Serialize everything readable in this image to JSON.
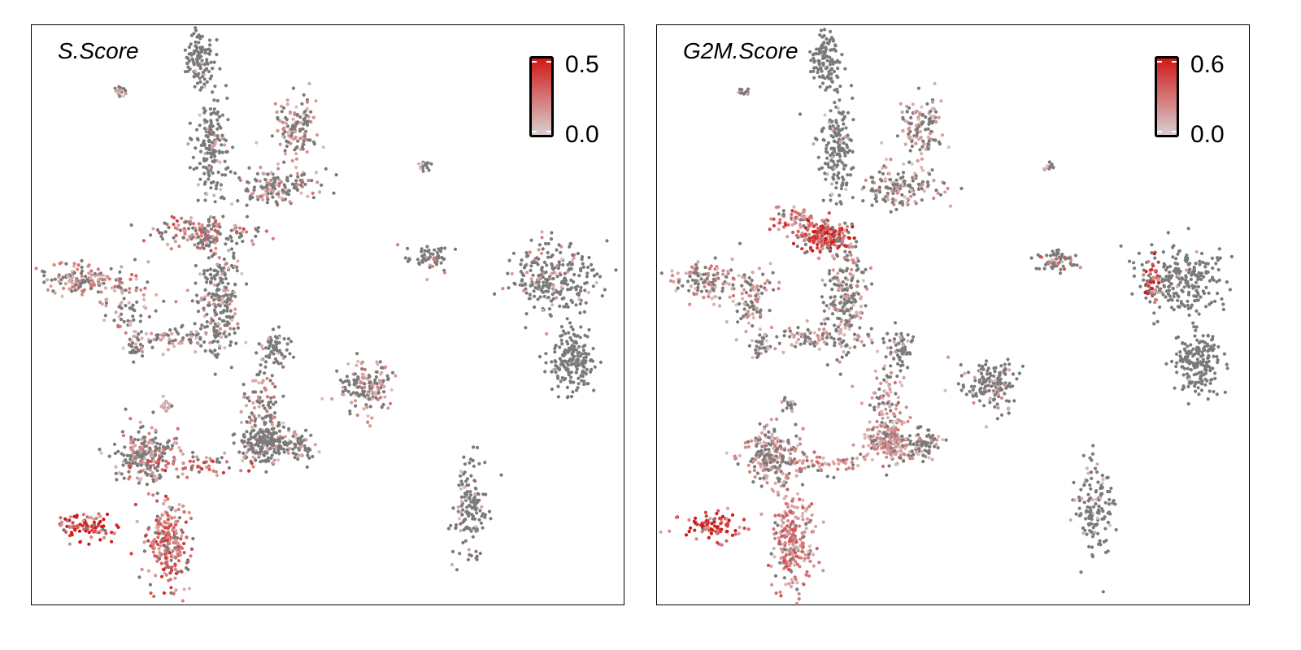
{
  "chart_data": [
    {
      "type": "scatter",
      "title": "S.Score",
      "xlabel": "",
      "ylabel": "",
      "color_scale": {
        "low_color": "#d8d0d0",
        "high_color": "#d01818",
        "min": 0.0,
        "max": 0.5,
        "min_label": "0.0",
        "max_label": "0.5"
      },
      "zero_color": "#7a7a7a",
      "legend_position": "top-right",
      "grid": false,
      "xlim": [
        0,
        100
      ],
      "ylim": [
        0,
        100
      ],
      "clusters": [
        {
          "x": 28.5,
          "y": 94.5,
          "sx": 1.2,
          "sy": 2.8,
          "n": 110,
          "frac": 0.05,
          "mean": 0.08
        },
        {
          "x": 30.5,
          "y": 79.0,
          "sx": 1.5,
          "sy": 4.0,
          "n": 170,
          "frac": 0.15,
          "mean": 0.1
        },
        {
          "x": 44.5,
          "y": 81.5,
          "sx": 1.8,
          "sy": 3.0,
          "n": 130,
          "frac": 0.55,
          "mean": 0.12
        },
        {
          "x": 41.0,
          "y": 72.0,
          "sx": 3.5,
          "sy": 1.6,
          "n": 150,
          "frac": 0.3,
          "mean": 0.14
        },
        {
          "x": 30.0,
          "y": 64.0,
          "sx": 4.5,
          "sy": 1.3,
          "n": 160,
          "frac": 0.55,
          "mean": 0.22
        },
        {
          "x": 32.0,
          "y": 53.0,
          "sx": 1.8,
          "sy": 4.8,
          "n": 220,
          "frac": 0.25,
          "mean": 0.12
        },
        {
          "x": 8.0,
          "y": 56.0,
          "sx": 2.8,
          "sy": 1.4,
          "n": 120,
          "frac": 0.6,
          "mean": 0.15
        },
        {
          "x": 16.0,
          "y": 52.5,
          "sx": 2.2,
          "sy": 2.6,
          "n": 90,
          "frac": 0.55,
          "mean": 0.16
        },
        {
          "x": 25.0,
          "y": 46.0,
          "sx": 4.5,
          "sy": 1.0,
          "n": 90,
          "frac": 0.4,
          "mean": 0.12
        },
        {
          "x": 41.0,
          "y": 44.0,
          "sx": 1.3,
          "sy": 1.6,
          "n": 60,
          "frac": 0.1,
          "mean": 0.08
        },
        {
          "x": 17.5,
          "y": 44.0,
          "sx": 0.7,
          "sy": 0.8,
          "n": 25,
          "frac": 0.3,
          "mean": 0.1
        },
        {
          "x": 39.0,
          "y": 34.0,
          "sx": 1.5,
          "sy": 3.5,
          "n": 90,
          "frac": 0.5,
          "mean": 0.15
        },
        {
          "x": 39.5,
          "y": 28.0,
          "sx": 2.0,
          "sy": 1.8,
          "n": 200,
          "frac": 0.25,
          "mean": 0.1
        },
        {
          "x": 45.0,
          "y": 27.5,
          "sx": 1.4,
          "sy": 1.5,
          "n": 70,
          "frac": 0.3,
          "mean": 0.1
        },
        {
          "x": 19.5,
          "y": 25.5,
          "sx": 2.5,
          "sy": 2.5,
          "n": 220,
          "frac": 0.4,
          "mean": 0.15
        },
        {
          "x": 28.0,
          "y": 24.0,
          "sx": 4.5,
          "sy": 1.0,
          "n": 60,
          "frac": 0.75,
          "mean": 0.25
        },
        {
          "x": 23.0,
          "y": 10.5,
          "sx": 1.8,
          "sy": 4.0,
          "n": 240,
          "frac": 0.8,
          "mean": 0.25
        },
        {
          "x": 9.0,
          "y": 13.5,
          "sx": 2.5,
          "sy": 1.2,
          "n": 90,
          "frac": 0.95,
          "mean": 0.4
        },
        {
          "x": 56.5,
          "y": 37.5,
          "sx": 2.2,
          "sy": 2.2,
          "n": 150,
          "frac": 0.45,
          "mean": 0.14
        },
        {
          "x": 67.5,
          "y": 59.5,
          "sx": 1.7,
          "sy": 1.1,
          "n": 60,
          "frac": 0.3,
          "mean": 0.15
        },
        {
          "x": 66.5,
          "y": 75.5,
          "sx": 0.5,
          "sy": 0.5,
          "n": 15,
          "frac": 0.4,
          "mean": 0.1
        },
        {
          "x": 74.0,
          "y": 16.5,
          "sx": 1.6,
          "sy": 4.0,
          "n": 140,
          "frac": 0.15,
          "mean": 0.08
        },
        {
          "x": 88.5,
          "y": 56.0,
          "sx": 3.5,
          "sy": 3.0,
          "n": 260,
          "frac": 0.15,
          "mean": 0.12
        },
        {
          "x": 91.5,
          "y": 42.0,
          "sx": 1.8,
          "sy": 2.8,
          "n": 180,
          "frac": 0.02,
          "mean": 0.05
        },
        {
          "x": 15.0,
          "y": 88.5,
          "sx": 0.6,
          "sy": 0.4,
          "n": 15,
          "frac": 0.6,
          "mean": 0.1
        },
        {
          "x": 22.5,
          "y": 34.5,
          "sx": 0.6,
          "sy": 0.8,
          "n": 15,
          "frac": 0.4,
          "mean": 0.1
        }
      ]
    },
    {
      "type": "scatter",
      "title": "G2M.Score",
      "xlabel": "",
      "ylabel": "",
      "color_scale": {
        "low_color": "#d8d0d0",
        "high_color": "#d01818",
        "min": 0.0,
        "max": 0.6,
        "min_label": "0.0",
        "max_label": "0.6"
      },
      "zero_color": "#7a7a7a",
      "legend_position": "top-right",
      "grid": false,
      "xlim": [
        0,
        100
      ],
      "ylim": [
        0,
        100
      ],
      "clusters": [
        {
          "x": 28.5,
          "y": 94.5,
          "sx": 1.2,
          "sy": 2.8,
          "n": 110,
          "frac": 0.02,
          "mean": 0.08
        },
        {
          "x": 30.5,
          "y": 79.0,
          "sx": 1.5,
          "sy": 4.0,
          "n": 170,
          "frac": 0.08,
          "mean": 0.1
        },
        {
          "x": 44.5,
          "y": 81.5,
          "sx": 1.8,
          "sy": 3.0,
          "n": 130,
          "frac": 0.5,
          "mean": 0.12
        },
        {
          "x": 41.0,
          "y": 72.0,
          "sx": 3.5,
          "sy": 1.6,
          "n": 150,
          "frac": 0.35,
          "mean": 0.14
        },
        {
          "x": 28.5,
          "y": 63.5,
          "sx": 2.2,
          "sy": 1.3,
          "n": 190,
          "frac": 0.9,
          "mean": 0.42
        },
        {
          "x": 23.0,
          "y": 66.5,
          "sx": 2.5,
          "sy": 1.1,
          "n": 60,
          "frac": 0.85,
          "mean": 0.3
        },
        {
          "x": 32.0,
          "y": 53.0,
          "sx": 1.8,
          "sy": 4.8,
          "n": 220,
          "frac": 0.35,
          "mean": 0.14
        },
        {
          "x": 8.0,
          "y": 56.0,
          "sx": 2.8,
          "sy": 1.4,
          "n": 120,
          "frac": 0.55,
          "mean": 0.18
        },
        {
          "x": 16.0,
          "y": 52.5,
          "sx": 2.2,
          "sy": 2.6,
          "n": 90,
          "frac": 0.5,
          "mean": 0.16
        },
        {
          "x": 25.0,
          "y": 46.0,
          "sx": 4.5,
          "sy": 1.0,
          "n": 90,
          "frac": 0.45,
          "mean": 0.14
        },
        {
          "x": 41.0,
          "y": 44.0,
          "sx": 1.3,
          "sy": 1.6,
          "n": 60,
          "frac": 0.3,
          "mean": 0.1
        },
        {
          "x": 17.5,
          "y": 44.0,
          "sx": 0.7,
          "sy": 0.8,
          "n": 25,
          "frac": 0.4,
          "mean": 0.1
        },
        {
          "x": 39.0,
          "y": 34.0,
          "sx": 1.5,
          "sy": 3.5,
          "n": 90,
          "frac": 0.6,
          "mean": 0.18
        },
        {
          "x": 39.5,
          "y": 28.0,
          "sx": 2.0,
          "sy": 1.8,
          "n": 200,
          "frac": 0.7,
          "mean": 0.16
        },
        {
          "x": 45.0,
          "y": 27.5,
          "sx": 1.4,
          "sy": 1.5,
          "n": 70,
          "frac": 0.3,
          "mean": 0.12
        },
        {
          "x": 19.5,
          "y": 25.5,
          "sx": 2.5,
          "sy": 2.5,
          "n": 220,
          "frac": 0.55,
          "mean": 0.15
        },
        {
          "x": 28.0,
          "y": 24.0,
          "sx": 4.5,
          "sy": 1.0,
          "n": 60,
          "frac": 0.75,
          "mean": 0.22
        },
        {
          "x": 23.0,
          "y": 10.5,
          "sx": 1.8,
          "sy": 4.0,
          "n": 240,
          "frac": 0.85,
          "mean": 0.24
        },
        {
          "x": 9.0,
          "y": 13.5,
          "sx": 2.5,
          "sy": 1.2,
          "n": 90,
          "frac": 0.95,
          "mean": 0.48
        },
        {
          "x": 56.5,
          "y": 37.5,
          "sx": 2.2,
          "sy": 2.2,
          "n": 150,
          "frac": 0.3,
          "mean": 0.14
        },
        {
          "x": 67.5,
          "y": 59.5,
          "sx": 1.7,
          "sy": 1.1,
          "n": 60,
          "frac": 0.25,
          "mean": 0.25
        },
        {
          "x": 66.5,
          "y": 75.5,
          "sx": 0.5,
          "sy": 0.5,
          "n": 15,
          "frac": 0.3,
          "mean": 0.15
        },
        {
          "x": 74.0,
          "y": 16.5,
          "sx": 1.6,
          "sy": 4.0,
          "n": 140,
          "frac": 0.15,
          "mean": 0.08
        },
        {
          "x": 88.5,
          "y": 56.0,
          "sx": 3.5,
          "sy": 3.0,
          "n": 230,
          "frac": 0.02,
          "mean": 0.1
        },
        {
          "x": 84.0,
          "y": 55.5,
          "sx": 1.0,
          "sy": 1.8,
          "n": 40,
          "frac": 0.95,
          "mean": 0.38
        },
        {
          "x": 91.5,
          "y": 42.0,
          "sx": 1.8,
          "sy": 2.8,
          "n": 180,
          "frac": 0.01,
          "mean": 0.05
        },
        {
          "x": 15.0,
          "y": 88.5,
          "sx": 0.6,
          "sy": 0.4,
          "n": 15,
          "frac": 0.4,
          "mean": 0.1
        },
        {
          "x": 22.5,
          "y": 34.5,
          "sx": 0.6,
          "sy": 0.8,
          "n": 15,
          "frac": 0.3,
          "mean": 0.1
        }
      ]
    }
  ]
}
